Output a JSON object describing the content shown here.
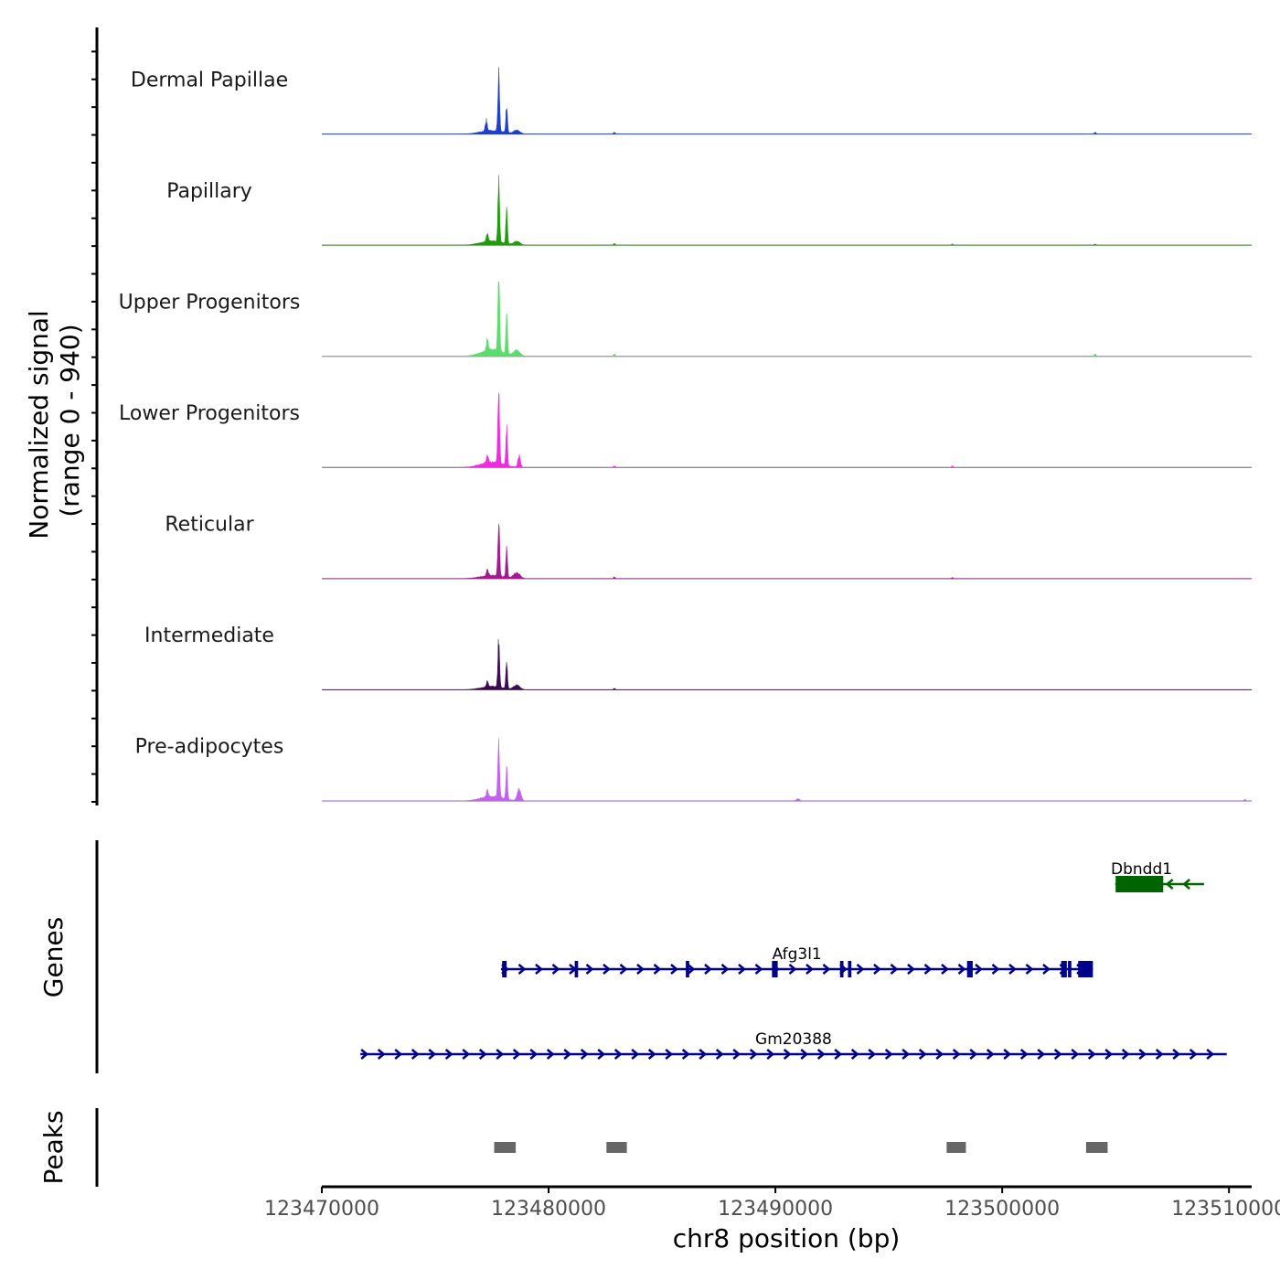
{
  "chart_data": {
    "type": "area",
    "subtype": "genome-coverage-tracks",
    "chromosome": "chr8",
    "coverage_ylabel": "Normalized signal\n(range 0 - 940)",
    "coverage_ylabel_lines": [
      "Normalized signal",
      "(range 0 - 940)"
    ],
    "signal_range": [
      0,
      940
    ],
    "x_range": [
      123470000,
      123511000
    ],
    "xlabel": "chr8 position (bp)",
    "xticks": [
      123470000,
      123480000,
      123490000,
      123500000,
      123510000
    ],
    "xtick_labels": [
      "123470000",
      "123480000",
      "123490000",
      "123500000",
      "123510000"
    ],
    "series": [
      {
        "name": "Dermal Papillae",
        "color": "#1d3fcb",
        "scale": 0.98,
        "peaks": [
          {
            "x": 123477500,
            "h": 0.06,
            "w": 700
          },
          {
            "x": 123477800,
            "h": 0.95,
            "w": 55
          },
          {
            "x": 123478150,
            "h": 0.45,
            "w": 50
          },
          {
            "x": 123477250,
            "h": 0.18,
            "w": 60
          },
          {
            "x": 123478600,
            "h": 0.06,
            "w": 200
          },
          {
            "x": 123482900,
            "h": 0.03,
            "w": 60
          },
          {
            "x": 123504100,
            "h": 0.03,
            "w": 60
          }
        ]
      },
      {
        "name": "Papillary",
        "color": "#1e9d0a",
        "scale": 1.0,
        "peaks": [
          {
            "x": 123477500,
            "h": 0.07,
            "w": 700
          },
          {
            "x": 123477800,
            "h": 0.96,
            "w": 55
          },
          {
            "x": 123478150,
            "h": 0.58,
            "w": 50
          },
          {
            "x": 123477300,
            "h": 0.15,
            "w": 60
          },
          {
            "x": 123478600,
            "h": 0.06,
            "w": 200
          },
          {
            "x": 123482900,
            "h": 0.03,
            "w": 60
          },
          {
            "x": 123497800,
            "h": 0.02,
            "w": 60
          },
          {
            "x": 123504100,
            "h": 0.02,
            "w": 60
          }
        ]
      },
      {
        "name": "Upper Progenitors",
        "color": "#5cdc6a",
        "scale": 1.35,
        "peaks": [
          {
            "x": 123477500,
            "h": 0.08,
            "w": 700
          },
          {
            "x": 123477800,
            "h": 0.98,
            "w": 55
          },
          {
            "x": 123478150,
            "h": 0.5,
            "w": 50
          },
          {
            "x": 123477300,
            "h": 0.14,
            "w": 60
          },
          {
            "x": 123478600,
            "h": 0.07,
            "w": 200
          },
          {
            "x": 123482900,
            "h": 0.03,
            "w": 60
          },
          {
            "x": 123504100,
            "h": 0.03,
            "w": 60
          }
        ]
      },
      {
        "name": "Lower Progenitors",
        "color": "#ef2ce0",
        "scale": 1.25,
        "peaks": [
          {
            "x": 123477500,
            "h": 0.07,
            "w": 700
          },
          {
            "x": 123477800,
            "h": 0.98,
            "w": 55
          },
          {
            "x": 123478150,
            "h": 0.5,
            "w": 50
          },
          {
            "x": 123478700,
            "h": 0.15,
            "w": 80
          },
          {
            "x": 123477300,
            "h": 0.1,
            "w": 60
          },
          {
            "x": 123482900,
            "h": 0.02,
            "w": 60
          },
          {
            "x": 123497800,
            "h": 0.02,
            "w": 60
          }
        ]
      },
      {
        "name": "Reticular",
        "color": "#a3198f",
        "scale": 0.95,
        "peaks": [
          {
            "x": 123477500,
            "h": 0.06,
            "w": 700
          },
          {
            "x": 123477800,
            "h": 0.96,
            "w": 55
          },
          {
            "x": 123478150,
            "h": 0.55,
            "w": 50
          },
          {
            "x": 123477300,
            "h": 0.12,
            "w": 60
          },
          {
            "x": 123478600,
            "h": 0.1,
            "w": 200
          },
          {
            "x": 123482900,
            "h": 0.03,
            "w": 60
          },
          {
            "x": 123497800,
            "h": 0.02,
            "w": 60
          }
        ]
      },
      {
        "name": "Intermediate",
        "color": "#3a0b54",
        "scale": 0.78,
        "peaks": [
          {
            "x": 123477500,
            "h": 0.07,
            "w": 700
          },
          {
            "x": 123477800,
            "h": 0.97,
            "w": 55
          },
          {
            "x": 123478150,
            "h": 0.6,
            "w": 50
          },
          {
            "x": 123477300,
            "h": 0.12,
            "w": 60
          },
          {
            "x": 123478600,
            "h": 0.09,
            "w": 200
          },
          {
            "x": 123482900,
            "h": 0.03,
            "w": 60
          }
        ]
      },
      {
        "name": "Pre-adipocytes",
        "color": "#c55ef2",
        "scale": 0.95,
        "peaks": [
          {
            "x": 123477500,
            "h": 0.08,
            "w": 700
          },
          {
            "x": 123477800,
            "h": 0.97,
            "w": 55
          },
          {
            "x": 123478150,
            "h": 0.55,
            "w": 50
          },
          {
            "x": 123477300,
            "h": 0.12,
            "w": 60
          },
          {
            "x": 123478700,
            "h": 0.2,
            "w": 120
          },
          {
            "x": 123491000,
            "h": 0.04,
            "w": 100
          },
          {
            "x": 123510700,
            "h": 0.03,
            "w": 60
          }
        ]
      }
    ],
    "genes": {
      "label": "Genes",
      "items": [
        {
          "name": "Dbndd1",
          "strand": "-",
          "color": "#006400",
          "start": 123505000,
          "end": 123508900,
          "exons": [
            [
              123505000,
              123507100
            ]
          ]
        },
        {
          "name": "Afg3l1",
          "strand": "+",
          "color": "#00008b",
          "start": 123477900,
          "end": 123504000,
          "exons": [
            [
              123477950,
              123478150
            ],
            [
              123481150,
              123481300
            ],
            [
              123486050,
              123486200
            ],
            [
              123489850,
              123490100
            ],
            [
              123492850,
              123493000
            ],
            [
              123493200,
              123493350
            ],
            [
              123498450,
              123498700
            ],
            [
              123502600,
              123502850
            ],
            [
              123502900,
              123503050
            ],
            [
              123503350,
              123504000
            ]
          ]
        },
        {
          "name": "Gm20388",
          "strand": "+",
          "color": "#00008b",
          "start": 123471700,
          "end": 123509900,
          "exons": []
        }
      ]
    },
    "peaks": {
      "label": "Peaks",
      "color": "#666666",
      "regions": [
        [
          123477600,
          123478550
        ],
        [
          123482550,
          123483450
        ],
        [
          123497550,
          123498400
        ],
        [
          123503700,
          123504650
        ]
      ]
    }
  }
}
